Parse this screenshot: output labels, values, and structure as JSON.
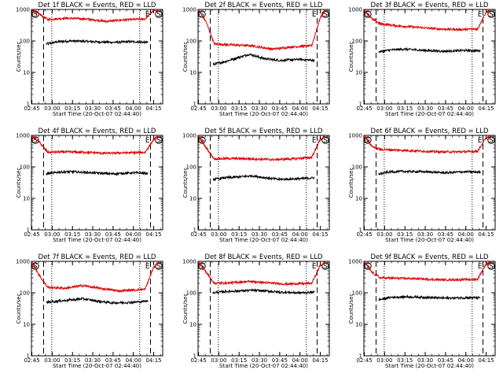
{
  "chart_data": [
    {
      "type": "line",
      "title": "Det 1f BLACK = Events, RED = LLD",
      "xlabel": "Start Time (20-Oct-07 02:44:40)",
      "ylabel": "Counts/sec",
      "yscale": "log",
      "ylim": [
        1,
        1000
      ],
      "xlim_min": [
        0,
        97
      ],
      "x_tick_labels": [
        "02:45",
        "03:00",
        "03:15",
        "03:30",
        "03:45",
        "04:00",
        "04:15"
      ],
      "y_tick_labels": [
        "1",
        "10",
        "100",
        "1000"
      ],
      "marker_labels": {
        "start": "S",
        "end": "E"
      },
      "saa_dashed_min": [
        9,
        88
      ],
      "dotted_min": [
        15,
        80
      ],
      "series": [
        {
          "color": "#000000",
          "values": [
            {
              "x": 11,
              "y": 80
            },
            {
              "x": 20,
              "y": 95
            },
            {
              "x": 30,
              "y": 100
            },
            {
              "x": 45,
              "y": 95
            },
            {
              "x": 60,
              "y": 90
            },
            {
              "x": 75,
              "y": 95
            },
            {
              "x": 86,
              "y": 90
            }
          ]
        },
        {
          "color": "#e00000",
          "values": [
            {
              "x": 0,
              "y": 1000
            },
            {
              "x": 6,
              "y": 700
            },
            {
              "x": 12,
              "y": 480
            },
            {
              "x": 25,
              "y": 530
            },
            {
              "x": 40,
              "y": 500
            },
            {
              "x": 55,
              "y": 420
            },
            {
              "x": 70,
              "y": 470
            },
            {
              "x": 84,
              "y": 500
            },
            {
              "x": 90,
              "y": 900
            },
            {
              "x": 94,
              "y": 1000
            }
          ]
        }
      ]
    },
    {
      "type": "line",
      "title": "Det 2f BLACK = Events, RED = LLD",
      "xlabel": "Start Time (20-Oct-07 02:44:40)",
      "ylabel": "Counts/sec",
      "yscale": "log",
      "ylim": [
        1,
        1000
      ],
      "xlim_min": [
        0,
        97
      ],
      "x_tick_labels": [
        "02:45",
        "03:00",
        "03:15",
        "03:30",
        "03:45",
        "04:00",
        "04:15"
      ],
      "y_tick_labels": [
        "1",
        "10",
        "100",
        "1000"
      ],
      "marker_labels": {
        "start": "S",
        "end": "E"
      },
      "saa_dashed_min": [
        9,
        88
      ],
      "dotted_min": [
        15,
        80
      ],
      "series": [
        {
          "color": "#000000",
          "values": [
            {
              "x": 11,
              "y": 18
            },
            {
              "x": 20,
              "y": 22
            },
            {
              "x": 30,
              "y": 30
            },
            {
              "x": 38,
              "y": 38
            },
            {
              "x": 48,
              "y": 28
            },
            {
              "x": 60,
              "y": 24
            },
            {
              "x": 75,
              "y": 26
            },
            {
              "x": 86,
              "y": 24
            }
          ]
        },
        {
          "color": "#e00000",
          "values": [
            {
              "x": 0,
              "y": 1000
            },
            {
              "x": 6,
              "y": 400
            },
            {
              "x": 12,
              "y": 80
            },
            {
              "x": 25,
              "y": 75
            },
            {
              "x": 40,
              "y": 70
            },
            {
              "x": 55,
              "y": 55
            },
            {
              "x": 70,
              "y": 65
            },
            {
              "x": 84,
              "y": 70
            },
            {
              "x": 90,
              "y": 500
            },
            {
              "x": 94,
              "y": 1000
            }
          ]
        }
      ]
    },
    {
      "type": "line",
      "title": "Det 3f BLACK = Events, RED = LLD",
      "xlabel": "Start Time (20-Oct-07 02:44:40)",
      "ylabel": "Counts/sec",
      "yscale": "log",
      "ylim": [
        1,
        1000
      ],
      "xlim_min": [
        0,
        97
      ],
      "x_tick_labels": [
        "02:45",
        "03:00",
        "03:15",
        "03:30",
        "03:45",
        "04:00",
        "04:15"
      ],
      "y_tick_labels": [
        "1",
        "10",
        "100",
        "1000"
      ],
      "marker_labels": {
        "start": "S",
        "end": "E"
      },
      "saa_dashed_min": [
        9,
        88
      ],
      "dotted_min": [
        15,
        80
      ],
      "series": [
        {
          "color": "#000000",
          "values": [
            {
              "x": 11,
              "y": 45
            },
            {
              "x": 20,
              "y": 52
            },
            {
              "x": 30,
              "y": 55
            },
            {
              "x": 45,
              "y": 50
            },
            {
              "x": 60,
              "y": 47
            },
            {
              "x": 75,
              "y": 50
            },
            {
              "x": 86,
              "y": 48
            }
          ]
        },
        {
          "color": "#e00000",
          "values": [
            {
              "x": 0,
              "y": 1000
            },
            {
              "x": 6,
              "y": 500
            },
            {
              "x": 12,
              "y": 350
            },
            {
              "x": 25,
              "y": 300
            },
            {
              "x": 40,
              "y": 270
            },
            {
              "x": 55,
              "y": 240
            },
            {
              "x": 70,
              "y": 230
            },
            {
              "x": 84,
              "y": 240
            },
            {
              "x": 90,
              "y": 800
            },
            {
              "x": 94,
              "y": 1000
            }
          ]
        }
      ]
    },
    {
      "type": "line",
      "title": "Det 4f BLACK = Events, RED = LLD",
      "xlabel": "Start Time (20-Oct-07 02:44:40)",
      "ylabel": "Counts/sec",
      "yscale": "log",
      "ylim": [
        1,
        1000
      ],
      "xlim_min": [
        0,
        97
      ],
      "x_tick_labels": [
        "02:45",
        "03:00",
        "03:15",
        "03:30",
        "03:45",
        "04:00",
        "04:15"
      ],
      "y_tick_labels": [
        "1",
        "10",
        "100",
        "1000"
      ],
      "marker_labels": {
        "start": "S",
        "end": "E"
      },
      "saa_dashed_min": [
        9,
        88
      ],
      "dotted_min": [
        15,
        80
      ],
      "series": [
        {
          "color": "#000000",
          "values": [
            {
              "x": 11,
              "y": 60
            },
            {
              "x": 20,
              "y": 68
            },
            {
              "x": 30,
              "y": 70
            },
            {
              "x": 45,
              "y": 65
            },
            {
              "x": 60,
              "y": 60
            },
            {
              "x": 75,
              "y": 65
            },
            {
              "x": 86,
              "y": 62
            }
          ]
        },
        {
          "color": "#e00000",
          "values": [
            {
              "x": 0,
              "y": 1000
            },
            {
              "x": 6,
              "y": 600
            },
            {
              "x": 12,
              "y": 290
            },
            {
              "x": 25,
              "y": 300
            },
            {
              "x": 40,
              "y": 290
            },
            {
              "x": 55,
              "y": 270
            },
            {
              "x": 70,
              "y": 280
            },
            {
              "x": 84,
              "y": 290
            },
            {
              "x": 90,
              "y": 700
            },
            {
              "x": 94,
              "y": 1000
            }
          ]
        }
      ]
    },
    {
      "type": "line",
      "title": "Det 5f BLACK = Events, RED = LLD",
      "xlabel": "Start Time (20-Oct-07 02:44:40)",
      "ylabel": "Counts/sec",
      "yscale": "log",
      "ylim": [
        1,
        1000
      ],
      "xlim_min": [
        0,
        97
      ],
      "x_tick_labels": [
        "02:45",
        "03:00",
        "03:15",
        "03:30",
        "03:45",
        "04:00",
        "04:15"
      ],
      "y_tick_labels": [
        "1",
        "10",
        "100",
        "1000"
      ],
      "marker_labels": {
        "start": "S",
        "end": "E"
      },
      "saa_dashed_min": [
        9,
        88
      ],
      "dotted_min": [
        15,
        80
      ],
      "series": [
        {
          "color": "#000000",
          "values": [
            {
              "x": 11,
              "y": 40
            },
            {
              "x": 20,
              "y": 45
            },
            {
              "x": 30,
              "y": 48
            },
            {
              "x": 40,
              "y": 52
            },
            {
              "x": 50,
              "y": 45
            },
            {
              "x": 60,
              "y": 40
            },
            {
              "x": 75,
              "y": 42
            },
            {
              "x": 86,
              "y": 45
            }
          ]
        },
        {
          "color": "#e00000",
          "values": [
            {
              "x": 0,
              "y": 1000
            },
            {
              "x": 6,
              "y": 400
            },
            {
              "x": 12,
              "y": 180
            },
            {
              "x": 25,
              "y": 185
            },
            {
              "x": 40,
              "y": 180
            },
            {
              "x": 55,
              "y": 170
            },
            {
              "x": 70,
              "y": 180
            },
            {
              "x": 84,
              "y": 200
            },
            {
              "x": 90,
              "y": 700
            },
            {
              "x": 94,
              "y": 1000
            }
          ]
        }
      ]
    },
    {
      "type": "line",
      "title": "Det 6f BLACK = Events, RED = LLD",
      "xlabel": "Start Time (20-Oct-07 02:44:40)",
      "ylabel": "Counts/sec",
      "yscale": "log",
      "ylim": [
        1,
        1000
      ],
      "xlim_min": [
        0,
        97
      ],
      "x_tick_labels": [
        "02:45",
        "03:00",
        "03:15",
        "03:30",
        "03:45",
        "04:00",
        "04:15"
      ],
      "y_tick_labels": [
        "1",
        "10",
        "100",
        "1000"
      ],
      "marker_labels": {
        "start": "S",
        "end": "E"
      },
      "saa_dashed_min": [
        9,
        88
      ],
      "dotted_min": [
        15,
        80
      ],
      "series": [
        {
          "color": "#000000",
          "values": [
            {
              "x": 11,
              "y": 60
            },
            {
              "x": 20,
              "y": 70
            },
            {
              "x": 30,
              "y": 72
            },
            {
              "x": 45,
              "y": 70
            },
            {
              "x": 60,
              "y": 65
            },
            {
              "x": 75,
              "y": 70
            },
            {
              "x": 86,
              "y": 68
            }
          ]
        },
        {
          "color": "#e00000",
          "values": [
            {
              "x": 0,
              "y": 1000
            },
            {
              "x": 6,
              "y": 450
            },
            {
              "x": 12,
              "y": 360
            },
            {
              "x": 25,
              "y": 340
            },
            {
              "x": 40,
              "y": 320
            },
            {
              "x": 55,
              "y": 300
            },
            {
              "x": 70,
              "y": 300
            },
            {
              "x": 84,
              "y": 310
            },
            {
              "x": 90,
              "y": 800
            },
            {
              "x": 94,
              "y": 1000
            }
          ]
        }
      ]
    },
    {
      "type": "line",
      "title": "Det 7f BLACK = Events, RED = LLD",
      "xlabel": "Start Time (20-Oct-07 02:44:40)",
      "ylabel": "Counts/sec",
      "yscale": "log",
      "ylim": [
        1,
        1000
      ],
      "xlim_min": [
        0,
        97
      ],
      "x_tick_labels": [
        "02:45",
        "03:00",
        "03:15",
        "03:30",
        "03:45",
        "04:00",
        "04:15"
      ],
      "y_tick_labels": [
        "1",
        "10",
        "100",
        "1000"
      ],
      "marker_labels": {
        "start": "S",
        "end": "E"
      },
      "saa_dashed_min": [
        9,
        88
      ],
      "dotted_min": [
        15,
        80
      ],
      "series": [
        {
          "color": "#000000",
          "values": [
            {
              "x": 11,
              "y": 50
            },
            {
              "x": 20,
              "y": 55
            },
            {
              "x": 30,
              "y": 60
            },
            {
              "x": 38,
              "y": 65
            },
            {
              "x": 48,
              "y": 55
            },
            {
              "x": 60,
              "y": 48
            },
            {
              "x": 75,
              "y": 50
            },
            {
              "x": 86,
              "y": 55
            }
          ]
        },
        {
          "color": "#e00000",
          "values": [
            {
              "x": 0,
              "y": 1000
            },
            {
              "x": 6,
              "y": 350
            },
            {
              "x": 12,
              "y": 150
            },
            {
              "x": 25,
              "y": 140
            },
            {
              "x": 38,
              "y": 170
            },
            {
              "x": 50,
              "y": 140
            },
            {
              "x": 65,
              "y": 115
            },
            {
              "x": 84,
              "y": 130
            },
            {
              "x": 90,
              "y": 600
            },
            {
              "x": 94,
              "y": 1000
            }
          ]
        }
      ]
    },
    {
      "type": "line",
      "title": "Det 8f BLACK = Events, RED = LLD",
      "xlabel": "Start Time (20-Oct-07 02:44:40)",
      "ylabel": "Counts/sec",
      "yscale": "log",
      "ylim": [
        1,
        1000
      ],
      "xlim_min": [
        0,
        97
      ],
      "x_tick_labels": [
        "02:45",
        "03:00",
        "03:15",
        "03:30",
        "03:45",
        "04:00",
        "04:15"
      ],
      "y_tick_labels": [
        "1",
        "10",
        "100",
        "1000"
      ],
      "marker_labels": {
        "start": "S",
        "end": "E"
      },
      "saa_dashed_min": [
        9,
        88
      ],
      "dotted_min": [
        15,
        80
      ],
      "series": [
        {
          "color": "#000000",
          "values": [
            {
              "x": 11,
              "y": 100
            },
            {
              "x": 20,
              "y": 110
            },
            {
              "x": 30,
              "y": 115
            },
            {
              "x": 40,
              "y": 120
            },
            {
              "x": 50,
              "y": 115
            },
            {
              "x": 60,
              "y": 105
            },
            {
              "x": 75,
              "y": 100
            },
            {
              "x": 86,
              "y": 105
            }
          ]
        },
        {
          "color": "#e00000",
          "values": [
            {
              "x": 0,
              "y": 1000
            },
            {
              "x": 6,
              "y": 450
            },
            {
              "x": 12,
              "y": 200
            },
            {
              "x": 25,
              "y": 210
            },
            {
              "x": 38,
              "y": 230
            },
            {
              "x": 50,
              "y": 210
            },
            {
              "x": 65,
              "y": 190
            },
            {
              "x": 84,
              "y": 200
            },
            {
              "x": 90,
              "y": 700
            },
            {
              "x": 94,
              "y": 1000
            }
          ]
        }
      ]
    },
    {
      "type": "line",
      "title": "Det 9f BLACK = Events, RED = LLD",
      "xlabel": "Start Time (20-Oct-07 02:44:40)",
      "ylabel": "Counts/sec",
      "yscale": "log",
      "ylim": [
        1,
        1000
      ],
      "xlim_min": [
        0,
        97
      ],
      "x_tick_labels": [
        "02:45",
        "03:00",
        "03:15",
        "03:30",
        "03:45",
        "04:00",
        "04:15"
      ],
      "y_tick_labels": [
        "1",
        "10",
        "100",
        "1000"
      ],
      "marker_labels": {
        "start": "S",
        "end": "E"
      },
      "saa_dashed_min": [
        9,
        88
      ],
      "dotted_min": [
        15,
        80
      ],
      "series": [
        {
          "color": "#000000",
          "values": [
            {
              "x": 11,
              "y": 60
            },
            {
              "x": 20,
              "y": 72
            },
            {
              "x": 30,
              "y": 75
            },
            {
              "x": 45,
              "y": 72
            },
            {
              "x": 60,
              "y": 68
            },
            {
              "x": 75,
              "y": 70
            },
            {
              "x": 86,
              "y": 70
            }
          ]
        },
        {
          "color": "#e00000",
          "values": [
            {
              "x": 0,
              "y": 1000
            },
            {
              "x": 6,
              "y": 450
            },
            {
              "x": 12,
              "y": 300
            },
            {
              "x": 25,
              "y": 290
            },
            {
              "x": 40,
              "y": 280
            },
            {
              "x": 55,
              "y": 260
            },
            {
              "x": 70,
              "y": 260
            },
            {
              "x": 84,
              "y": 270
            },
            {
              "x": 90,
              "y": 800
            },
            {
              "x": 94,
              "y": 1000
            }
          ]
        }
      ]
    }
  ]
}
